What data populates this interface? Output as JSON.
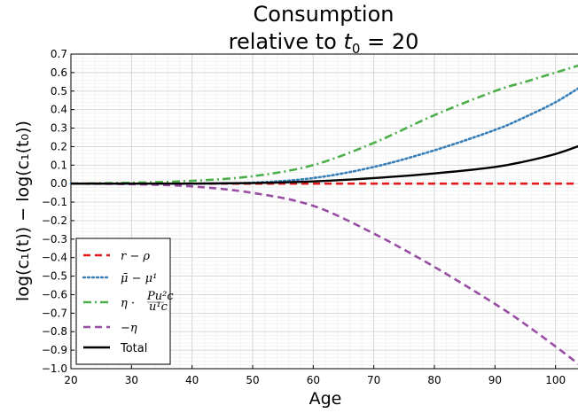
{
  "chart_data": {
    "type": "line",
    "title_line1": "Consumption",
    "title_line2_prefix": "relative to ",
    "title_line2_var": "t",
    "title_line2_sub": "0",
    "title_line2_suffix": " = 20",
    "xlabel": "Age",
    "ylabel": "log(c₁(t)) − log(c₁(t₀))",
    "xlim": [
      20,
      104
    ],
    "ylim": [
      -1.0,
      0.7
    ],
    "xticks": [
      20,
      30,
      40,
      50,
      60,
      70,
      80,
      90,
      100
    ],
    "xtick_labels": [
      "20",
      "30",
      "40",
      "50",
      "60",
      "70",
      "80",
      "90",
      "100"
    ],
    "yticks": [
      0.7,
      0.6,
      0.5,
      0.4,
      0.3,
      0.2,
      0.1,
      0.0,
      -0.1,
      -0.2,
      -0.3,
      -0.4,
      -0.5,
      -0.6,
      -0.7,
      -0.8,
      -0.9,
      -1.0
    ],
    "ytick_labels": [
      "0.7",
      "0.6",
      "0.5",
      "0.4",
      "0.3",
      "0.2",
      "0.1",
      "0.0",
      "−0.1",
      "−0.2",
      "−0.3",
      "−0.4",
      "−0.5",
      "−0.6",
      "−0.7",
      "−0.8",
      "−0.9",
      "−1.0"
    ],
    "grid": true,
    "legend_position": "bottom-left",
    "x": [
      20,
      30,
      40,
      50,
      60,
      70,
      80,
      90,
      95,
      100,
      104
    ],
    "series": [
      {
        "name": "r − ρ",
        "color": "#e41a1c",
        "dash": "dashed",
        "values": [
          0,
          0,
          0,
          0,
          0,
          0,
          0,
          0,
          0,
          0,
          0
        ]
      },
      {
        "name": "μ̄ − μ¹",
        "color": "#377eb8",
        "dash": "dotted",
        "values": [
          0,
          0.0,
          0.0,
          0.005,
          0.03,
          0.09,
          0.18,
          0.29,
          0.36,
          0.44,
          0.52
        ]
      },
      {
        "name": "η · Pu²c / u¹c",
        "color": "#4daf4a",
        "dash": "dashdot",
        "values": [
          0,
          0.005,
          0.015,
          0.04,
          0.1,
          0.22,
          0.37,
          0.5,
          0.55,
          0.6,
          0.64
        ]
      },
      {
        "name": "−η",
        "color": "#984ea3",
        "dash": "dashed",
        "values": [
          0,
          -0.003,
          -0.015,
          -0.05,
          -0.12,
          -0.27,
          -0.45,
          -0.65,
          -0.76,
          -0.88,
          -0.98
        ]
      },
      {
        "name": "Total",
        "color": "#000000",
        "dash": "solid",
        "values": [
          0,
          0.0,
          0.0,
          0.003,
          0.012,
          0.03,
          0.055,
          0.09,
          0.12,
          0.16,
          0.205
        ]
      }
    ],
    "legend": {
      "labels": [
        {
          "parts": [
            "r",
            " − ",
            "ρ"
          ]
        },
        {
          "parts": [
            "μ̄",
            " − ",
            "μ¹"
          ]
        },
        {
          "parts": [
            "η",
            " · "
          ],
          "frac_num": "Pu²c",
          "frac_den": "u¹c"
        },
        {
          "parts": [
            "−η"
          ]
        },
        {
          "parts": [
            "Total"
          ]
        }
      ]
    }
  }
}
